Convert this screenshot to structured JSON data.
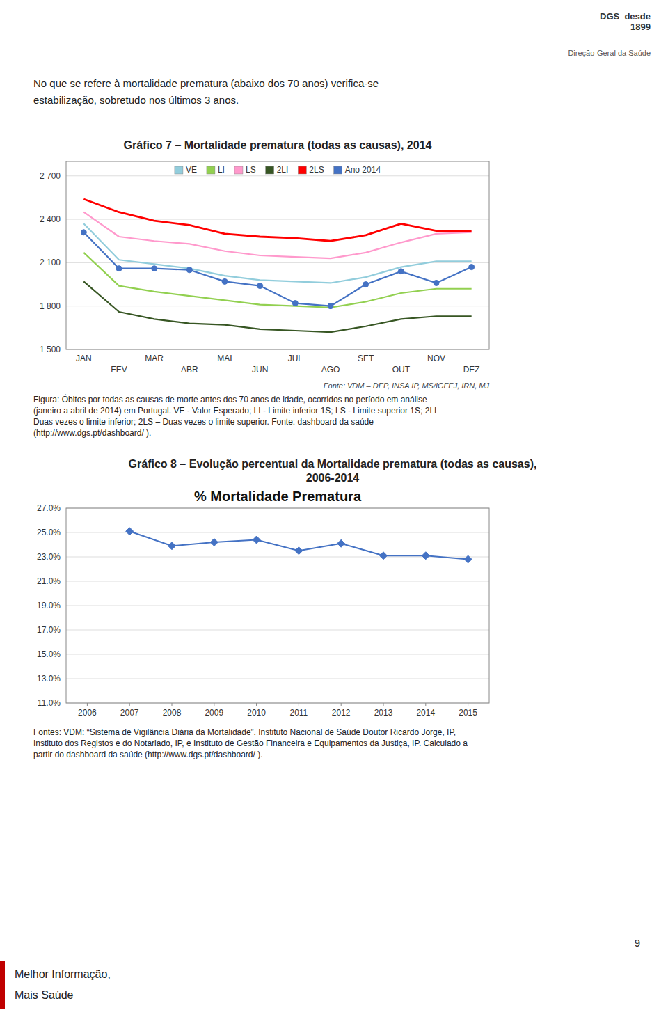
{
  "logo": "DGS  desde\n         1899",
  "logo_subtitle": "Direção-Geral da Saúde",
  "header": "No que se refere à mortalidade prematura (abaixo dos 70 anos) verifica-se\nestabilização, sobretudo nos últimos 3 anos.",
  "page_number": "9",
  "footer": "Melhor Informação,\nMais Saúde",
  "chart_data": [
    {
      "type": "line",
      "title": "Gráfico 7 – Mortalidade prematura (todas as causas), 2014",
      "categories": [
        "JAN",
        "FEV",
        "MAR",
        "ABR",
        "MAI",
        "JUN",
        "JUL",
        "AGO",
        "SET",
        "OUT",
        "NOV",
        "DEZ"
      ],
      "series": [
        {
          "name": "VE",
          "color": "#92CDDC",
          "values": [
            2370,
            2120,
            2090,
            2060,
            2010,
            1980,
            1970,
            1960,
            2000,
            2070,
            2110,
            2110
          ]
        },
        {
          "name": "LI",
          "color": "#92D050",
          "values": [
            2170,
            1940,
            1900,
            1870,
            1840,
            1810,
            1800,
            1790,
            1830,
            1890,
            1920,
            1920
          ]
        },
        {
          "name": "LS",
          "color": "#FF99CC",
          "values": [
            2450,
            2280,
            2250,
            2230,
            2180,
            2150,
            2140,
            2130,
            2170,
            2240,
            2300,
            2310
          ]
        },
        {
          "name": "2LI",
          "color": "#375623",
          "values": [
            1970,
            1760,
            1710,
            1680,
            1670,
            1640,
            1630,
            1620,
            1660,
            1710,
            1730,
            1730
          ]
        },
        {
          "name": "2LS",
          "color": "#FF0000",
          "values": [
            2540,
            2450,
            2390,
            2360,
            2300,
            2280,
            2270,
            2250,
            2290,
            2370,
            2320,
            2320
          ]
        },
        {
          "name": "Ano 2014",
          "color": "#4472C4",
          "marker": "circle",
          "values": [
            2310,
            2060,
            2060,
            2050,
            1970,
            1940,
            1820,
            1800,
            1950,
            2040,
            1960,
            2070
          ]
        }
      ],
      "ylim": [
        1500,
        2800
      ],
      "yticks": [
        {
          "value": 1500,
          "label": "1 500"
        },
        {
          "value": 1800,
          "label": "1 800"
        },
        {
          "value": 2100,
          "label": "2 100"
        },
        {
          "value": 2400,
          "label": "2 400"
        },
        {
          "value": 2700,
          "label": "2 700"
        }
      ],
      "grid": true,
      "legend": "top",
      "annotations": [
        "Fonte: VDM – DEP, INSA IP, MS/IGFEJ, IRN, MJ",
        "Figura: Óbitos por todas as causas de morte antes dos 70 anos de idade, ocorridos no período em análise",
        "(janeiro a abril de 2014) em Portugal. VE - Valor Esperado; LI - Limite inferior 1S; LS - Limite superior 1S; 2LI –",
        "Duas vezes o limite inferior; 2LS – Duas vezes o limite superior. Fonte: dashboard da saúde",
        "(http://www.dgs.pt/dashboard/ )."
      ]
    },
    {
      "type": "line",
      "title": "Gráfico 8 – Evolução percentual da Mortalidade prematura (todas as causas),\n2006-2014",
      "subtitle": "% Mortalidade Prematura",
      "x": [
        2006,
        2007,
        2008,
        2009,
        2010,
        2011,
        2012,
        2013,
        2014,
        2015
      ],
      "values": [
        null,
        25.1,
        23.9,
        24.2,
        24.4,
        23.5,
        24.1,
        23.1,
        23.1,
        22.8
      ],
      "color": "#4472C4",
      "marker": "diamond",
      "xlim": [
        2005.5,
        2015.5
      ],
      "xticks": [
        2006,
        2007,
        2008,
        2009,
        2010,
        2011,
        2012,
        2013,
        2014,
        2015
      ],
      "ylim": [
        11.0,
        27.0
      ],
      "yticks": [
        {
          "value": 11.0,
          "label": "11.0%"
        },
        {
          "value": 13.0,
          "label": "13.0%"
        },
        {
          "value": 15.0,
          "label": "15.0%"
        },
        {
          "value": 17.0,
          "label": "17.0%"
        },
        {
          "value": 19.0,
          "label": "19.0%"
        },
        {
          "value": 21.0,
          "label": "21.0%"
        },
        {
          "value": 23.0,
          "label": "23.0%"
        },
        {
          "value": 25.0,
          "label": "25.0%"
        },
        {
          "value": 27.0,
          "label": "27.0%"
        }
      ],
      "grid": true,
      "annotations": [
        "Fontes: VDM: “Sistema de Vigilância Diária da Mortalidade”. Instituto Nacional de Saúde Doutor Ricardo Jorge, IP,",
        "Instituto dos Registos e do Notariado, IP, e Instituto de Gestão Financeira e Equipamentos da Justiça, IP. Calculado a",
        "partir do dashboard da saúde (http://www.dgs.pt/dashboard/ )."
      ]
    }
  ]
}
